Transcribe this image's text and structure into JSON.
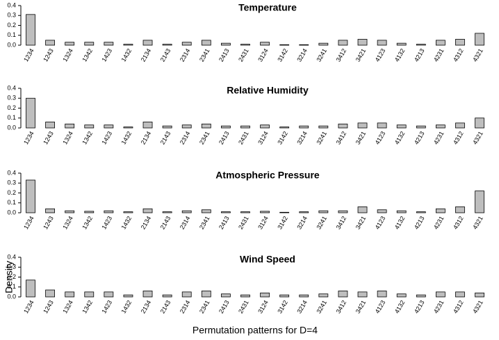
{
  "chart_data": [
    {
      "type": "bar",
      "title": "Temperature",
      "categories": [
        "1234",
        "1243",
        "1324",
        "1342",
        "1423",
        "1432",
        "2134",
        "2143",
        "2314",
        "2341",
        "2413",
        "2431",
        "3124",
        "3142",
        "3214",
        "3241",
        "3412",
        "3421",
        "4123",
        "4132",
        "4213",
        "4231",
        "4312",
        "4321"
      ],
      "values": [
        0.31,
        0.05,
        0.03,
        0.03,
        0.03,
        0.01,
        0.05,
        0.01,
        0.03,
        0.05,
        0.02,
        0.01,
        0.03,
        0.005,
        0.005,
        0.02,
        0.05,
        0.06,
        0.05,
        0.02,
        0.01,
        0.05,
        0.06,
        0.12
      ],
      "color": "#bebebe",
      "ylim": [
        0,
        0.4
      ],
      "yticks": [
        {
          "value": 0,
          "label": "0.0"
        },
        0.1,
        0.2,
        0.3,
        0.4
      ]
    },
    {
      "type": "bar",
      "title": "Relative Humidity",
      "categories": [
        "1234",
        "1243",
        "1324",
        "1342",
        "1423",
        "1432",
        "2134",
        "2143",
        "2314",
        "2341",
        "2413",
        "2431",
        "3124",
        "3142",
        "3214",
        "3241",
        "3412",
        "3421",
        "4123",
        "4132",
        "4213",
        "4231",
        "4312",
        "4321"
      ],
      "values": [
        0.3,
        0.06,
        0.04,
        0.03,
        0.03,
        0.01,
        0.06,
        0.02,
        0.03,
        0.04,
        0.02,
        0.02,
        0.03,
        0.01,
        0.02,
        0.02,
        0.04,
        0.05,
        0.05,
        0.03,
        0.02,
        0.03,
        0.05,
        0.1
      ],
      "color": "#bebebe",
      "ylim": [
        0,
        0.4
      ],
      "yticks": [
        {
          "value": 0,
          "label": "0.0"
        },
        0.1,
        0.2,
        0.3,
        0.4
      ]
    },
    {
      "type": "bar",
      "title": "Atmospheric Pressure",
      "categories": [
        "1234",
        "1243",
        "1324",
        "1342",
        "1423",
        "1432",
        "2134",
        "2143",
        "2314",
        "2341",
        "2413",
        "2431",
        "3124",
        "3142",
        "3214",
        "3241",
        "3412",
        "3421",
        "4123",
        "4132",
        "4213",
        "4231",
        "4312",
        "4321"
      ],
      "values": [
        0.33,
        0.04,
        0.02,
        0.015,
        0.02,
        0.01,
        0.04,
        0.01,
        0.02,
        0.03,
        0.01,
        0.01,
        0.015,
        0.005,
        0.01,
        0.02,
        0.02,
        0.06,
        0.03,
        0.02,
        0.01,
        0.04,
        0.06,
        0.22
      ],
      "color": "#bebebe",
      "ylim": [
        0,
        0.4
      ],
      "yticks": [
        {
          "value": 0,
          "label": "0.0"
        },
        0.1,
        0.2,
        0.3,
        0.4
      ]
    },
    {
      "type": "bar",
      "title": "Wind Speed",
      "ylabel": "Density",
      "xlabel": "Permutation patterns for D=4",
      "categories": [
        "1234",
        "1243",
        "1324",
        "1342",
        "1423",
        "1432",
        "2134",
        "2143",
        "2314",
        "2341",
        "2413",
        "2431",
        "3124",
        "3142",
        "3214",
        "3241",
        "3412",
        "3421",
        "4123",
        "4132",
        "4213",
        "4231",
        "4312",
        "4321"
      ],
      "values": [
        0.17,
        0.07,
        0.05,
        0.05,
        0.05,
        0.02,
        0.06,
        0.02,
        0.05,
        0.06,
        0.03,
        0.02,
        0.04,
        0.02,
        0.02,
        0.03,
        0.06,
        0.05,
        0.06,
        0.03,
        0.02,
        0.05,
        0.05,
        0.04
      ],
      "color": "#bebebe",
      "ylim": [
        0,
        0.4
      ],
      "yticks": [
        {
          "value": 0,
          "label": "0.0"
        },
        0.1,
        0.2,
        0.3,
        0.4
      ]
    }
  ]
}
